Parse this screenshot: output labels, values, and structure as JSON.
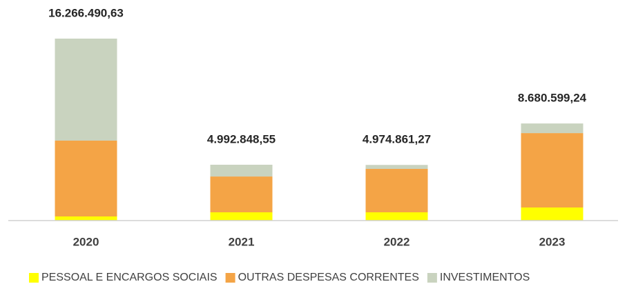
{
  "chart_data": {
    "type": "stacked_bar",
    "categories": [
      "2020",
      "2021",
      "2022",
      "2023"
    ],
    "series": [
      {
        "name": "PESSOAL E ENCARGOS SOCIAIS",
        "color": "#ffff00",
        "values": [
          370000,
          740000,
          740000,
          1170000
        ]
      },
      {
        "name": "OUTRAS DESPESAS CORRENTES",
        "color": "#f4a446",
        "values": [
          6780000,
          3200000,
          3880000,
          6650000
        ]
      },
      {
        "name": "INVESTIMENTOS",
        "color": "#c9d3bf",
        "values": [
          9116490.63,
          1052848.55,
          354861.27,
          860599.24
        ]
      }
    ],
    "totals": [
      16266490.63,
      4992848.55,
      4974861.27,
      8680599.24
    ],
    "total_labels": [
      "16.266.490,63",
      "4.992.848,55",
      "4.974.861,27",
      "8.680.599,24"
    ],
    "legend": "bottom"
  }
}
